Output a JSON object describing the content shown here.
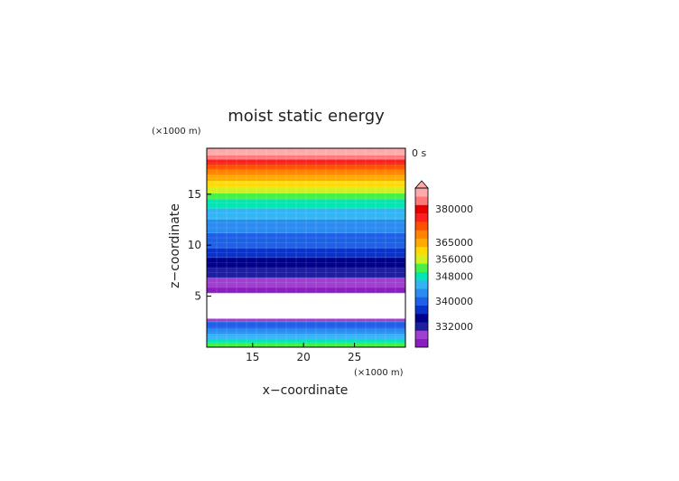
{
  "chart_data": {
    "type": "heatmap",
    "title": "moist static energy",
    "time_label": "0 s",
    "xlabel": "x−coordinate",
    "ylabel": "z−coordinate",
    "x_unit": "(×1000 m)",
    "y_unit": "(×1000 m)",
    "xlim": [
      10.5,
      30.0
    ],
    "ylim": [
      0,
      19.5
    ],
    "x_ticks": [
      15,
      20,
      25
    ],
    "y_ticks": [
      5,
      10,
      15
    ],
    "x_tick_labels": [
      "15",
      "20",
      "25"
    ],
    "y_tick_labels": [
      "5",
      "10",
      "15"
    ],
    "colorbar": {
      "tick_labels": [
        "380000",
        "365000",
        "356000",
        "348000",
        "340000",
        "332000"
      ],
      "colors_bottom_to_top": [
        "#8a1fbf",
        "#a040d0",
        "#1e1ea0",
        "#00008c",
        "#0a32c8",
        "#1e60e6",
        "#2a8cf0",
        "#34b4f5",
        "#00e6b4",
        "#46f046",
        "#d2f01e",
        "#ffdc00",
        "#ffaa00",
        "#ff8200",
        "#ff5000",
        "#ff1e1e",
        "#e60000",
        "#ff7878",
        "#ffaaaa"
      ]
    },
    "bands": [
      {
        "z0": 0.0,
        "z1": 0.4,
        "color": "#46f046"
      },
      {
        "z0": 0.4,
        "z1": 0.8,
        "color": "#00e6b4"
      },
      {
        "z0": 0.8,
        "z1": 1.3,
        "color": "#34b4f5"
      },
      {
        "z0": 1.3,
        "z1": 1.8,
        "color": "#2a8cf0"
      },
      {
        "z0": 1.8,
        "z1": 2.5,
        "color": "#1e60e6"
      },
      {
        "z0": 2.5,
        "z1": 2.8,
        "color": "#a040d0"
      },
      {
        "z0": 2.8,
        "z1": 5.3,
        "color": "#ffffff"
      },
      {
        "z0": 5.3,
        "z1": 5.9,
        "color": "#8a1fbf"
      },
      {
        "z0": 5.9,
        "z1": 6.8,
        "color": "#a040d0"
      },
      {
        "z0": 6.8,
        "z1": 7.8,
        "color": "#1e1ea0"
      },
      {
        "z0": 7.8,
        "z1": 8.8,
        "color": "#00008c"
      },
      {
        "z0": 8.8,
        "z1": 9.7,
        "color": "#0a32c8"
      },
      {
        "z0": 9.7,
        "z1": 11.2,
        "color": "#1e60e6"
      },
      {
        "z0": 11.2,
        "z1": 12.5,
        "color": "#2a8cf0"
      },
      {
        "z0": 12.5,
        "z1": 13.6,
        "color": "#34b4f5"
      },
      {
        "z0": 13.6,
        "z1": 14.5,
        "color": "#00e6b4"
      },
      {
        "z0": 14.5,
        "z1": 15.1,
        "color": "#46f046"
      },
      {
        "z0": 15.1,
        "z1": 15.7,
        "color": "#d2f01e"
      },
      {
        "z0": 15.7,
        "z1": 16.3,
        "color": "#ffdc00"
      },
      {
        "z0": 16.3,
        "z1": 16.9,
        "color": "#ffaa00"
      },
      {
        "z0": 16.9,
        "z1": 17.4,
        "color": "#ff8200"
      },
      {
        "z0": 17.4,
        "z1": 17.9,
        "color": "#ff5000"
      },
      {
        "z0": 17.9,
        "z1": 18.4,
        "color": "#ff1e1e"
      },
      {
        "z0": 18.4,
        "z1": 18.8,
        "color": "#ff7878"
      },
      {
        "z0": 18.8,
        "z1": 19.5,
        "color": "#ffaaaa"
      }
    ],
    "grid": true,
    "legend": "right"
  }
}
